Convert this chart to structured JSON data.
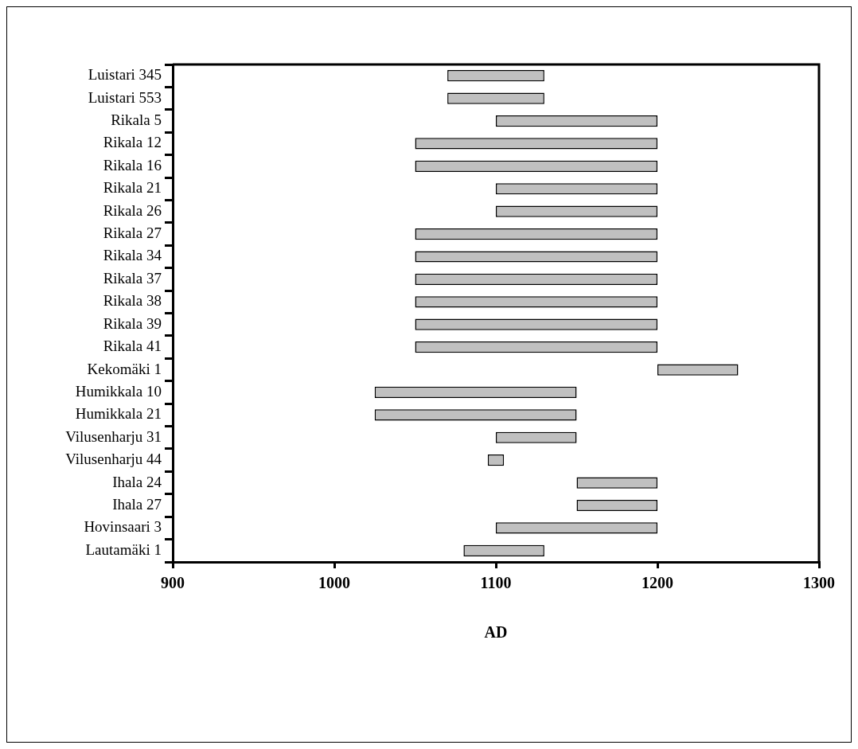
{
  "chart_data": {
    "type": "bar",
    "orientation": "horizontal",
    "xlabel": "AD",
    "categories": [
      "Luistari 345",
      "Luistari 553",
      "Rikala 5",
      "Rikala 12",
      "Rikala 16",
      "Rikala 21",
      "Rikala 26",
      "Rikala 27",
      "Rikala 34",
      "Rikala 37",
      "Rikala 38",
      "Rikala 39",
      "Rikala 41",
      "Kekomäki 1",
      "Humikkala 10",
      "Humikkala 21",
      "Vilusenharju 31",
      "Vilusenharju 44",
      "Ihala 24",
      "Ihala 27",
      "Hovinsaari 3",
      "Lautamäki 1"
    ],
    "base": [
      1070,
      1070,
      1100,
      1050,
      1050,
      1100,
      1100,
      1050,
      1050,
      1050,
      1050,
      1050,
      1050,
      1200,
      1025,
      1025,
      1100,
      1095,
      1150,
      1150,
      1100,
      1080
    ],
    "values": [
      60,
      60,
      100,
      150,
      150,
      100,
      100,
      150,
      150,
      150,
      150,
      150,
      150,
      50,
      125,
      125,
      50,
      10,
      50,
      50,
      100,
      50
    ],
    "color": "#c0c0c0",
    "xlim": [
      900,
      1300
    ],
    "xticks": [
      900,
      1000,
      1100,
      1200,
      1300
    ],
    "grid": false,
    "legend": false
  }
}
